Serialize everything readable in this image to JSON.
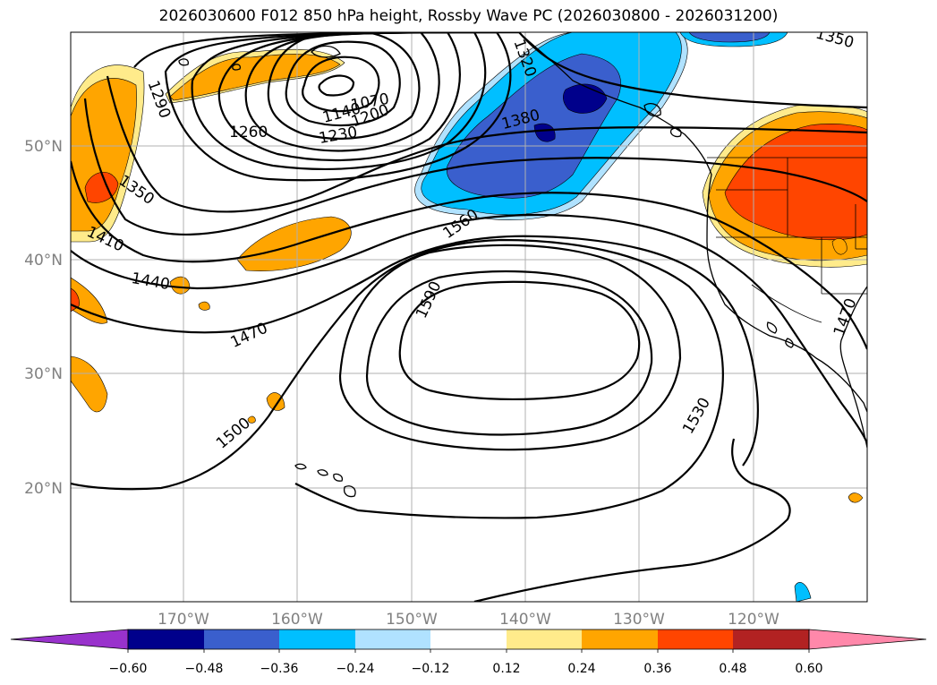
{
  "title": "2026030600 F012 850 hPa height, Rossby Wave PC (2026030800 - 2026031200)",
  "lat_labels": [
    "50°N",
    "40°N",
    "30°N",
    "20°N"
  ],
  "lon_labels": [
    "170°W",
    "160°W",
    "150°W",
    "140°W",
    "130°W",
    "120°W"
  ],
  "colorbar": {
    "colors": [
      "#9932cc",
      "#00008b",
      "#3a5fcd",
      "#00bfff",
      "#b0e2ff",
      "#ffffff",
      "#ffeb8b",
      "#ffa500",
      "#ff4500",
      "#b22222",
      "#ff88aa"
    ],
    "tick_labels": [
      "−0.60",
      "−0.48",
      "−0.36",
      "−0.24",
      "−0.12",
      "0.12",
      "0.24",
      "0.36",
      "0.48",
      "0.60"
    ]
  },
  "contour_labels": [
    "1290",
    "1260",
    "1230",
    "1200",
    "1140",
    "1070",
    "1320",
    "1350",
    "1350",
    "1380",
    "1410",
    "1440",
    "1470",
    "1470",
    "1500",
    "1530",
    "1560",
    "1590"
  ]
}
